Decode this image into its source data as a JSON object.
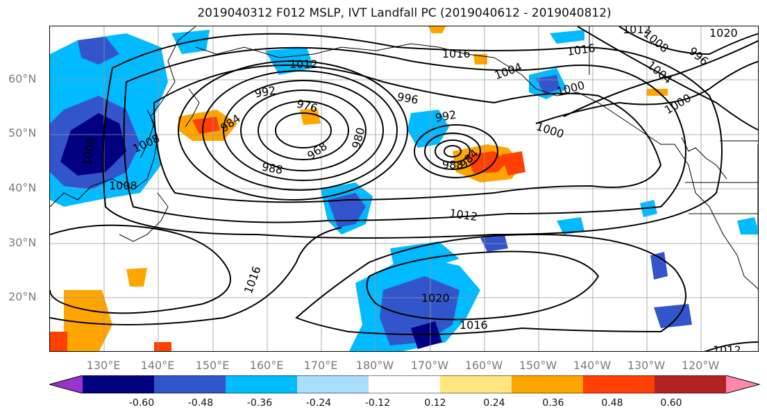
{
  "title": "2019040312 F012 MSLP, IVT Landfall PC (2019040612 - 2019040812)",
  "lat_labels": [
    "60°N",
    "50°N",
    "40°N",
    "30°N",
    "20°N"
  ],
  "lon_labels": [
    "130°E",
    "140°E",
    "150°E",
    "160°E",
    "170°E",
    "180°W",
    "170°W",
    "160°W",
    "150°W",
    "140°W",
    "130°W",
    "120°W"
  ],
  "isobar_labels": [
    "1012",
    "1016",
    "1016",
    "1020",
    "1016",
    "1012",
    "1012",
    "1008",
    "1008",
    "1008",
    "1004",
    "1000",
    "1000",
    "996",
    "992",
    "988",
    "984",
    "980",
    "976",
    "968",
    "988",
    "984",
    "992",
    "996",
    "1000",
    "1004",
    "1008",
    "1012",
    "1016",
    "1020"
  ],
  "colorbar": {
    "ticks": [
      "-0.60",
      "-0.48",
      "-0.36",
      "-0.24",
      "-0.12",
      "0.12",
      "0.24",
      "0.36",
      "0.48",
      "0.60"
    ],
    "colors": [
      "#9933cc",
      "#000080",
      "#3355cc",
      "#00bbff",
      "#aaddff",
      "#ffffff",
      "#ffe680",
      "#ffa500",
      "#ff4000",
      "#b22222",
      "#ff88aa"
    ]
  }
}
